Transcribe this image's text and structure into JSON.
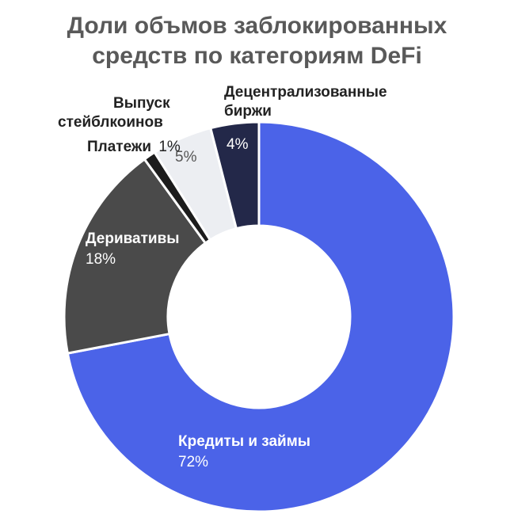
{
  "chart_data": {
    "type": "pie",
    "title_lines": [
      "Доли объмов заблокированных",
      "средств по категориям DeFi"
    ],
    "unit": "%",
    "slices": [
      {
        "name": "Кредиты и займы",
        "value": 72,
        "label": "72%",
        "color": "#4b63e8"
      },
      {
        "name": "Деривативы",
        "value": 18,
        "label": "18%",
        "color": "#4a4a4a"
      },
      {
        "name": "Платежи",
        "value": 1,
        "label": "1%",
        "color": "#1c1c1c"
      },
      {
        "name": "Выпуск стейблкоинов",
        "value": 5,
        "label": "5%",
        "color": "#eceef2"
      },
      {
        "name": "Децентрализованные биржи",
        "value": 4,
        "label": "4%",
        "color": "#232849"
      }
    ],
    "legend": "none"
  },
  "labels": {
    "loans": {
      "line1": "Кредиты и займы",
      "pct": "72%"
    },
    "derivatives": {
      "line1": "Деривативы",
      "pct": "18%"
    },
    "payments": {
      "line1": "Платежи",
      "pct": "1%"
    },
    "stablecoins": {
      "line1": "Выпуск",
      "line2": "стейблкоинов",
      "pct": "5%"
    },
    "dex": {
      "line1": "Децентрализованные",
      "line2": "биржи",
      "pct": "4%"
    }
  }
}
